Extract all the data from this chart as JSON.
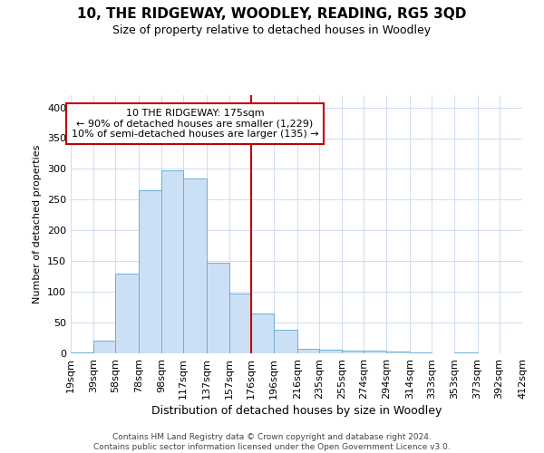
{
  "title": "10, THE RIDGEWAY, WOODLEY, READING, RG5 3QD",
  "subtitle": "Size of property relative to detached houses in Woodley",
  "xlabel": "Distribution of detached houses by size in Woodley",
  "ylabel": "Number of detached properties",
  "footer_line1": "Contains HM Land Registry data © Crown copyright and database right 2024.",
  "footer_line2": "Contains public sector information licensed under the Open Government Licence v3.0.",
  "annotation_line1": "10 THE RIDGEWAY: 175sqm",
  "annotation_line2": "← 90% of detached houses are smaller (1,229)",
  "annotation_line3": "10% of semi-detached houses are larger (135) →",
  "bar_heights": [
    2,
    20,
    130,
    265,
    297,
    285,
    147,
    98,
    65,
    38,
    8,
    6,
    5,
    4,
    3,
    2,
    0,
    2,
    0,
    0
  ],
  "bin_edges": [
    19,
    39,
    58,
    78,
    98,
    117,
    137,
    157,
    176,
    196,
    216,
    235,
    255,
    274,
    294,
    314,
    333,
    353,
    373,
    392,
    412
  ],
  "bin_labels": [
    "19sqm",
    "39sqm",
    "58sqm",
    "78sqm",
    "98sqm",
    "117sqm",
    "137sqm",
    "157sqm",
    "176sqm",
    "196sqm",
    "216sqm",
    "235sqm",
    "255sqm",
    "274sqm",
    "294sqm",
    "314sqm",
    "333sqm",
    "353sqm",
    "373sqm",
    "392sqm",
    "412sqm"
  ],
  "bar_color": "#cce0f5",
  "bar_edge_color": "#6baed6",
  "vline_x": 176,
  "vline_color": "#c00000",
  "annotation_box_edgecolor": "#c00000",
  "background_color": "#ffffff",
  "grid_color": "#c8d8ee",
  "ylim": [
    0,
    420
  ],
  "yticks": [
    0,
    50,
    100,
    150,
    200,
    250,
    300,
    350,
    400
  ],
  "title_fontsize": 11,
  "subtitle_fontsize": 9,
  "xlabel_fontsize": 9,
  "ylabel_fontsize": 8,
  "tick_fontsize": 8,
  "footer_fontsize": 6.5,
  "annot_fontsize": 8
}
